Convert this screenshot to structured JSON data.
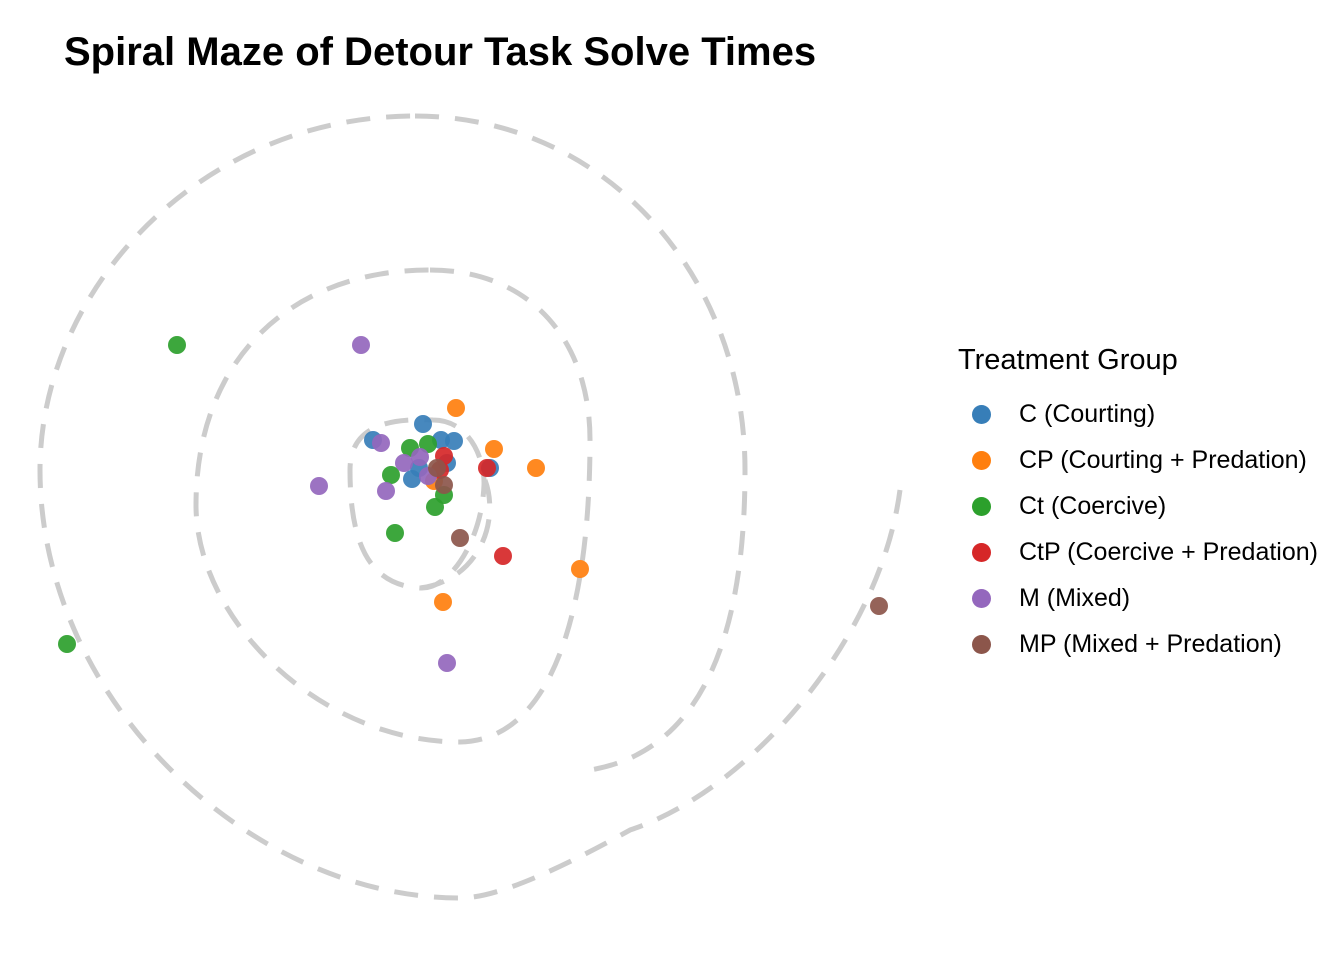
{
  "chart_data": {
    "type": "scatter",
    "title": "Spiral Maze of Detour Task Solve Times",
    "legend_title": "Treatment Group",
    "legend_position": "right",
    "grid": false,
    "axes_visible": false,
    "guide": "dashed spiral",
    "series": [
      {
        "name": "C (Courting)",
        "color": "#377EB8",
        "points": [
          [
            423,
            424
          ],
          [
            373,
            440
          ],
          [
            441,
            440
          ],
          [
            454,
            441
          ],
          [
            419,
            468
          ],
          [
            447,
            463
          ],
          [
            412,
            479
          ],
          [
            490,
            468
          ]
        ]
      },
      {
        "name": "CP (Courting + Predation)",
        "color": "#FF7F0E",
        "points": [
          [
            456,
            408
          ],
          [
            494,
            449
          ],
          [
            536,
            468
          ],
          [
            580,
            569
          ],
          [
            443,
            602
          ],
          [
            434,
            481
          ]
        ]
      },
      {
        "name": "Ct (Coercive)",
        "color": "#2CA02C",
        "points": [
          [
            177,
            345
          ],
          [
            67,
            644
          ],
          [
            395,
            533
          ],
          [
            435,
            507
          ],
          [
            444,
            495
          ],
          [
            391,
            475
          ],
          [
            410,
            448
          ],
          [
            428,
            444
          ]
        ]
      },
      {
        "name": "CtP (Coercive + Predation)",
        "color": "#D62728",
        "points": [
          [
            487,
            468
          ],
          [
            503,
            556
          ],
          [
            444,
            456
          ],
          [
            440,
            470
          ]
        ]
      },
      {
        "name": "M (Mixed)",
        "color": "#9467BD",
        "points": [
          [
            361,
            345
          ],
          [
            381,
            443
          ],
          [
            319,
            486
          ],
          [
            386,
            491
          ],
          [
            447,
            663
          ],
          [
            404,
            463
          ],
          [
            420,
            457
          ],
          [
            428,
            476
          ]
        ]
      },
      {
        "name": "MP (Mixed + Predation)",
        "color": "#8C564B",
        "points": [
          [
            879,
            606
          ],
          [
            460,
            538
          ],
          [
            444,
            485
          ],
          [
            437,
            468
          ]
        ]
      }
    ]
  }
}
